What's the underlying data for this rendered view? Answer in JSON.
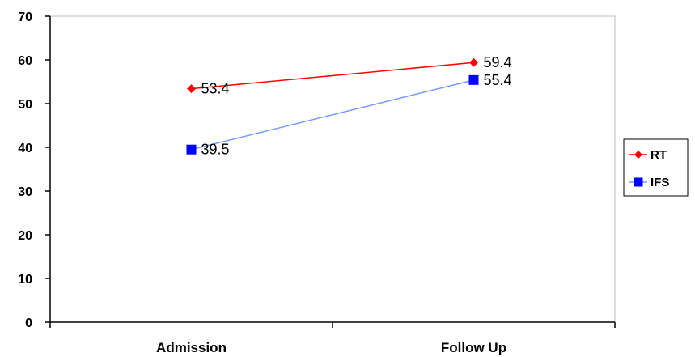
{
  "chart_data": {
    "type": "line",
    "categories": [
      "Admission",
      "Follow Up"
    ],
    "series": [
      {
        "name": "RT",
        "values": [
          53.4,
          59.4
        ],
        "color": "#ff0000",
        "marker": "diamond"
      },
      {
        "name": "IFS",
        "values": [
          39.5,
          55.4
        ],
        "color": "#0000ff",
        "marker": "square",
        "line_color": "#7799ff"
      }
    ],
    "data_labels": [
      [
        "53.4",
        "59.4"
      ],
      [
        "39.5",
        "55.4"
      ]
    ],
    "ylim": [
      0,
      70
    ],
    "yticks": [
      0,
      10,
      20,
      30,
      40,
      50,
      60,
      70
    ],
    "grid": false,
    "legend_position": "right",
    "title": "",
    "xlabel": "",
    "ylabel": ""
  }
}
